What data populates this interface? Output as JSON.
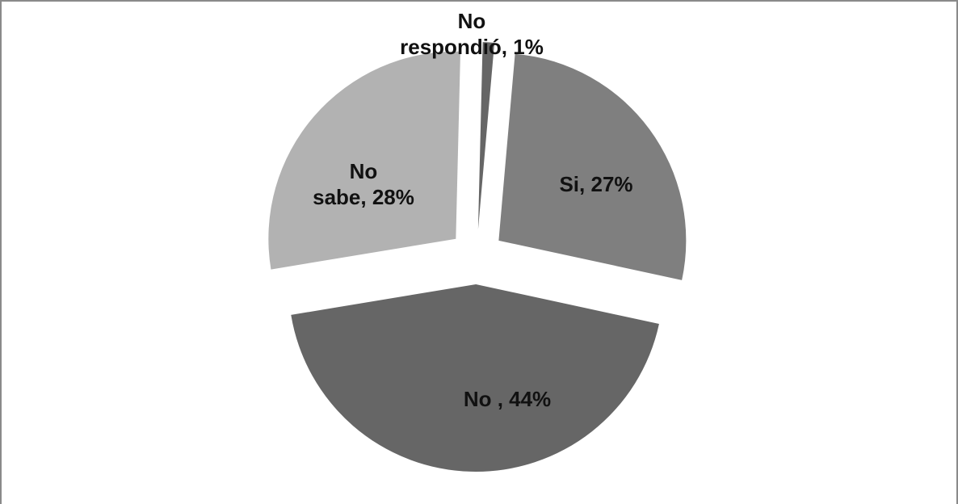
{
  "chart_data": {
    "type": "pie",
    "exploded": true,
    "slices": [
      {
        "label": "Si",
        "value": 27,
        "label_lines": [
          "Si, 27%"
        ],
        "color": "#7f7f7f"
      },
      {
        "label": "No ",
        "value": 44,
        "label_lines": [
          "No , 44%"
        ],
        "color": "#666666"
      },
      {
        "label": "No sabe",
        "value": 28,
        "label_lines": [
          "No",
          "sabe, 28%"
        ],
        "color": "#b2b2b2"
      },
      {
        "label": "No respondió",
        "value": 1,
        "label_lines": [
          "No",
          "respondió, 1%"
        ],
        "color": "#666666"
      }
    ],
    "legend": "none",
    "title": ""
  }
}
